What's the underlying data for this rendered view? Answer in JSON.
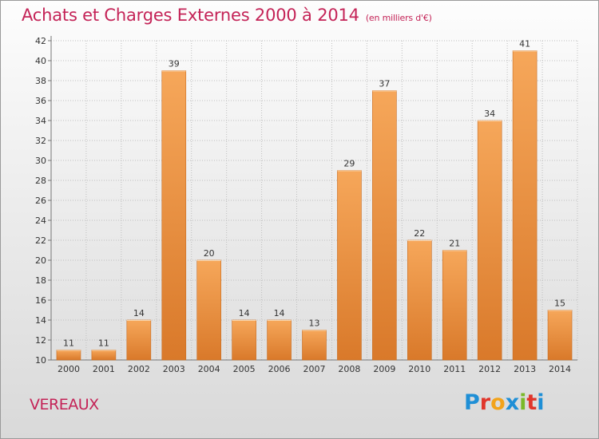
{
  "title": "Achats et Charges Externes 2000 à 2014",
  "subtitle": "(en milliers d'€)",
  "commune": "VEREAUX",
  "logo": {
    "text": "Proxiti",
    "letters": [
      "P",
      "r",
      "o",
      "x",
      "i",
      "t",
      "i"
    ],
    "colors": [
      "#1f8fd6",
      "#e0362b",
      "#f2a31b",
      "#1f8fd6",
      "#7ab929",
      "#e0362b",
      "#1f8fd6"
    ]
  },
  "colors": {
    "accent": "#c42357",
    "bar_top": "#f6a75a",
    "bar_bottom": "#d9792a",
    "grid": "#bfbfbf"
  },
  "chart_data": {
    "type": "bar",
    "categories": [
      "2000",
      "2001",
      "2002",
      "2003",
      "2004",
      "2005",
      "2006",
      "2007",
      "2008",
      "2009",
      "2010",
      "2011",
      "2012",
      "2013",
      "2014"
    ],
    "values": [
      11,
      11,
      14,
      39,
      20,
      14,
      14,
      13,
      29,
      37,
      22,
      21,
      34,
      41,
      15
    ],
    "ylim": [
      10,
      42
    ],
    "yticks": [
      10,
      12,
      14,
      16,
      18,
      20,
      22,
      24,
      26,
      28,
      30,
      32,
      34,
      36,
      38,
      40,
      42
    ],
    "grid": true,
    "legend": "none"
  }
}
